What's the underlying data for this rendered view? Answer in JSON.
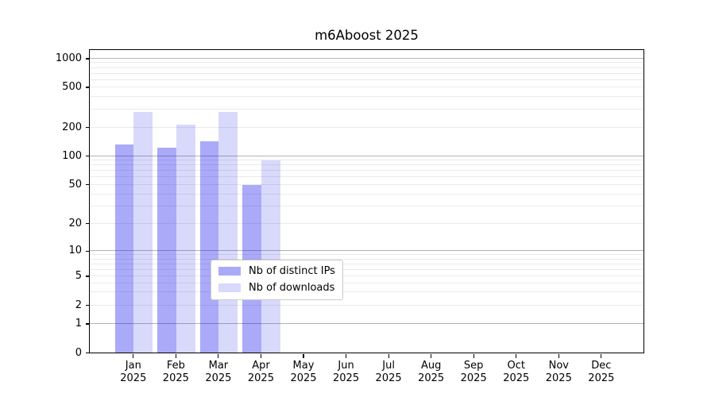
{
  "title": "m6Aboost 2025",
  "chart_data": {
    "type": "bar",
    "title": "m6Aboost 2025",
    "categories": [
      "Jan 2025",
      "Feb 2025",
      "Mar 2025",
      "Apr 2025",
      "May 2025",
      "Jun 2025",
      "Jul 2025",
      "Aug 2025",
      "Sep 2025",
      "Oct 2025",
      "Nov 2025",
      "Dec 2025"
    ],
    "series": [
      {
        "name": "Nb of distinct IPs",
        "color": "rgba(20,20,235,0.36)",
        "values": [
          132,
          122,
          142,
          49,
          0,
          0,
          0,
          0,
          0,
          0,
          0,
          0
        ]
      },
      {
        "name": "Nb of downloads",
        "color": "rgba(20,20,235,0.16)",
        "values": [
          281,
          212,
          281,
          89,
          0,
          0,
          0,
          0,
          0,
          0,
          0,
          0
        ]
      }
    ],
    "yscale": "log (linear segment below 1, 0 at baseline)",
    "ytick_labels": [
      "0",
      "1",
      "2",
      "5",
      "10",
      "20",
      "50",
      "100",
      "200",
      "500",
      "1000"
    ],
    "yticks": [
      0,
      1,
      2,
      5,
      10,
      20,
      50,
      100,
      200,
      500,
      1000
    ],
    "ylim": [
      0,
      1200
    ],
    "xlabel": "",
    "ylabel": "",
    "grid": "both (major decades darker, minors lighter)",
    "legend_position": "lower center"
  },
  "colors": {
    "major_grid": "#b3b3b3",
    "minor_grid": "#eaeaea",
    "spine": "#000000",
    "background": "#ffffff"
  }
}
